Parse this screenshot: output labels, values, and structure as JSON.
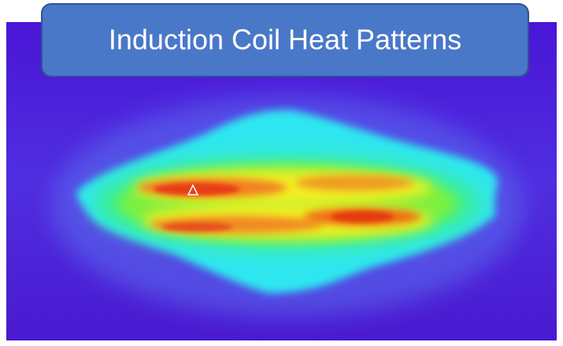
{
  "title": "Induction Coil Heat Patterns"
}
